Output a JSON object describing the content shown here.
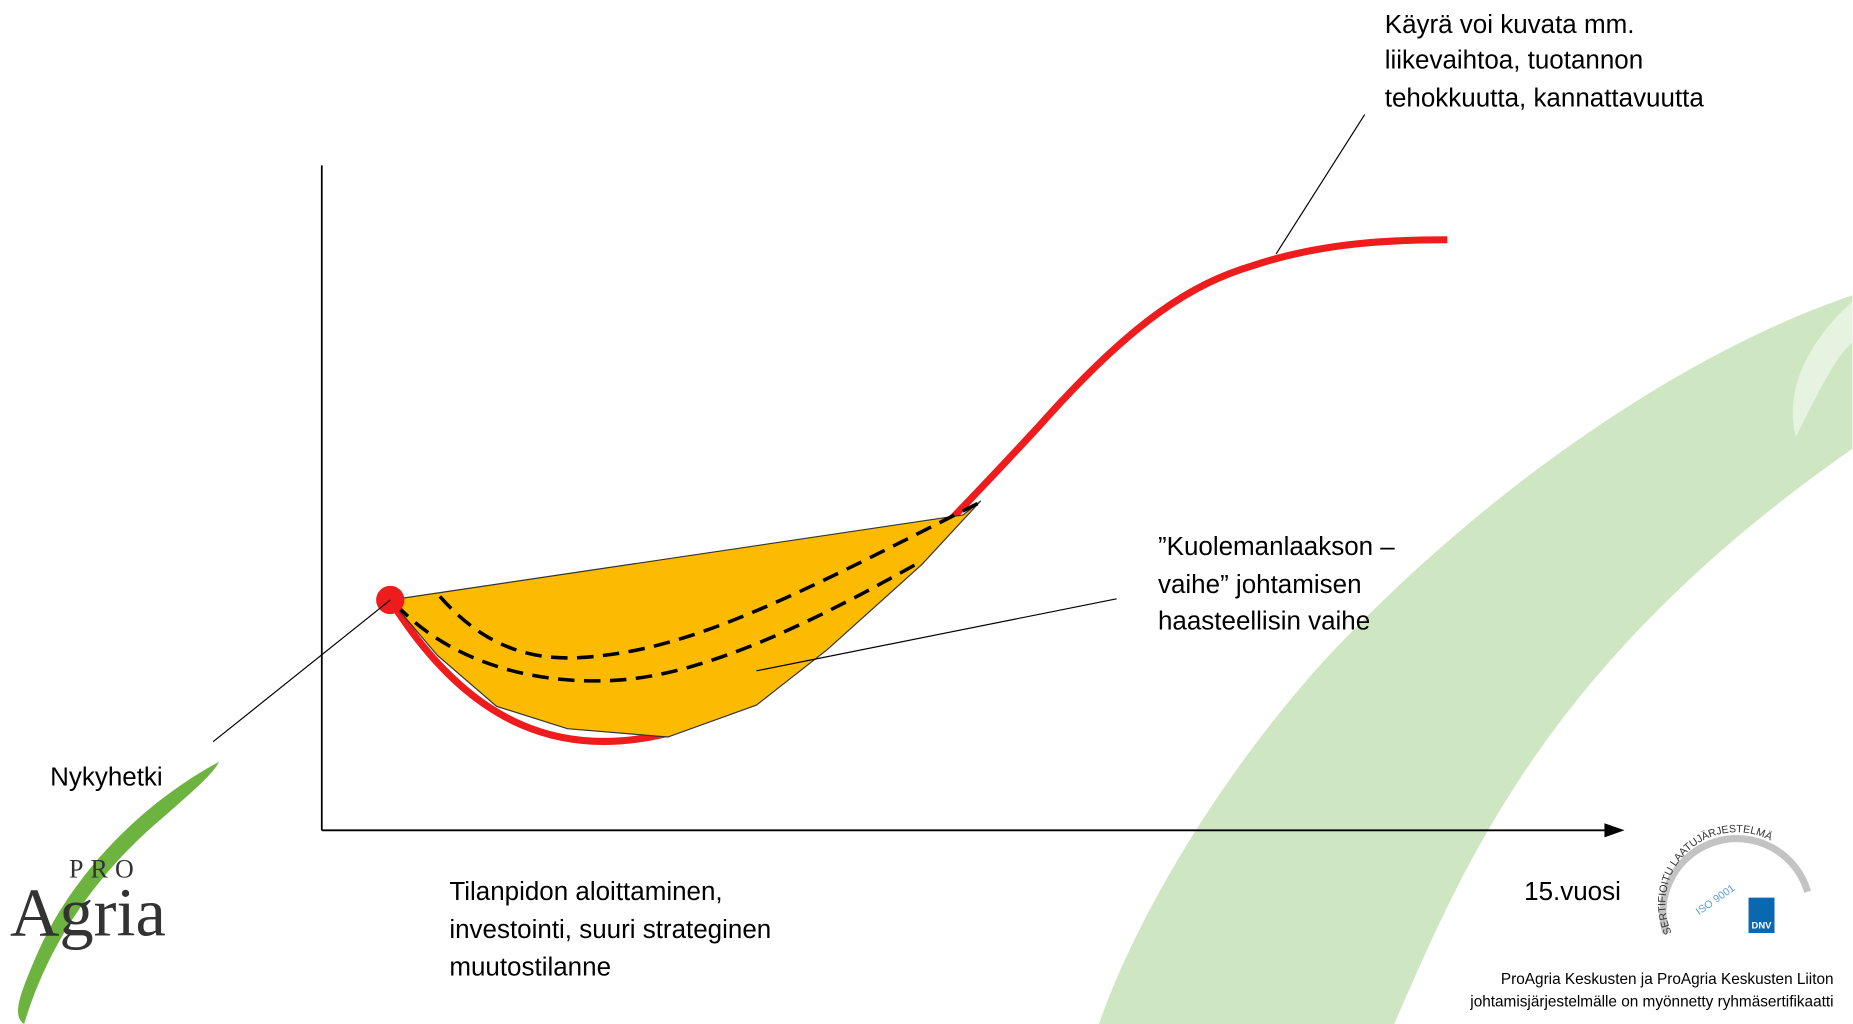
{
  "annotation_top": {
    "lines": [
      "Käyrä voi kuvata mm.",
      "liikevaihtoa, tuotannon",
      "tehokkuutta, kannattavuutta"
    ]
  },
  "annotation_valley": {
    "lines": [
      "”Kuolemanlaakson –",
      "vaihe” johtamisen",
      "haasteellisin vaihe"
    ]
  },
  "now_label": "Nykyhetki",
  "start_label": {
    "lines": [
      "Tilanpidon aloittaminen,",
      "investointi, suuri strateginen",
      "muutostilanne"
    ]
  },
  "end_label": "15.vuosi",
  "logo": {
    "small": "PRO",
    "large": "Agria"
  },
  "badge": {
    "arc": "SERTIFIOITU LAATUJÄRJESTELMÄ",
    "iso": "ISO 9001",
    "brand": "DNV"
  },
  "certification": {
    "lines": [
      "ProAgria Keskusten ja ProAgria Keskusten Liiton",
      "johtamisjärjestelmälle on myönnetty ryhmäsertifikaatti"
    ]
  }
}
